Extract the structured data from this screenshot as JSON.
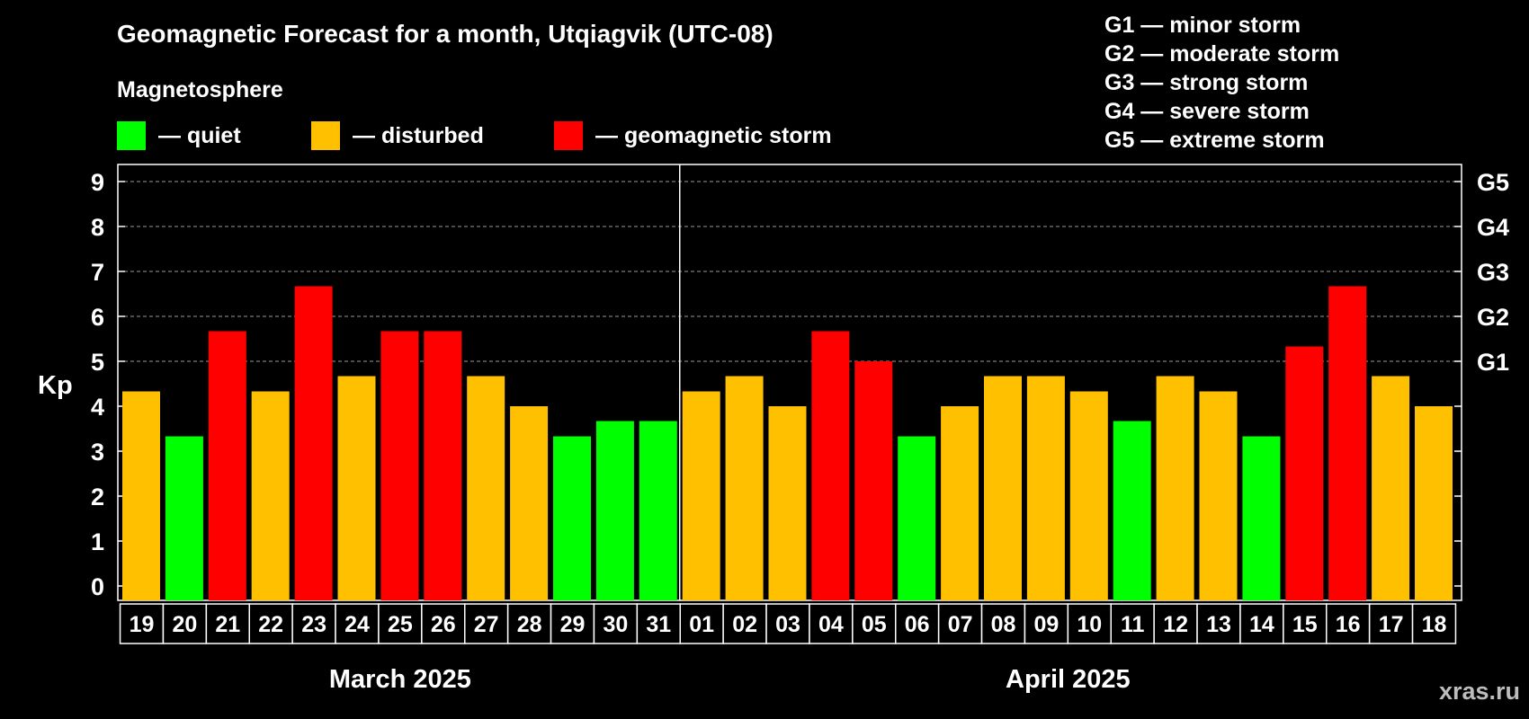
{
  "title": "Geomagnetic Forecast for a month, Utqiagvik (UTC-08)",
  "legend": {
    "title": "Magnetosphere",
    "items": [
      {
        "label": "— quiet",
        "color": "#00ff00"
      },
      {
        "label": "— disturbed",
        "color": "#ffc000"
      },
      {
        "label": "— geomagnetic storm",
        "color": "#ff0000"
      }
    ]
  },
  "g_scale": [
    "G1 — minor storm",
    "G2 — moderate storm",
    "G3 — strong storm",
    "G4 — severe storm",
    "G5 — extreme storm"
  ],
  "watermark": "xras.ru",
  "colors": {
    "quiet": "#00ff00",
    "disturbed": "#ffc000",
    "storm": "#ff0000"
  },
  "chart_data": {
    "type": "bar",
    "ylabel": "Kp",
    "ylim": [
      0,
      9
    ],
    "yticks": [
      "0",
      "1",
      "2",
      "3",
      "4",
      "5",
      "6",
      "7",
      "8",
      "9"
    ],
    "right_ticks": [
      {
        "label": "G1",
        "value": 5
      },
      {
        "label": "G2",
        "value": 6
      },
      {
        "label": "G3",
        "value": 7
      },
      {
        "label": "G4",
        "value": 8
      },
      {
        "label": "G5",
        "value": 9
      }
    ],
    "grid": "horizontal dashed from 5 to 9",
    "months": [
      {
        "label": "March 2025",
        "first_index": 0,
        "last_index": 12
      },
      {
        "label": "April 2025",
        "first_index": 13,
        "last_index": 30
      }
    ],
    "categories": [
      "19",
      "20",
      "21",
      "22",
      "23",
      "24",
      "25",
      "26",
      "27",
      "28",
      "29",
      "30",
      "31",
      "01",
      "02",
      "03",
      "04",
      "05",
      "06",
      "07",
      "08",
      "09",
      "10",
      "11",
      "12",
      "13",
      "14",
      "15",
      "16",
      "17",
      "18"
    ],
    "values": [
      4.33,
      3.33,
      5.67,
      4.33,
      6.67,
      4.67,
      5.67,
      5.67,
      4.67,
      4.0,
      3.33,
      3.67,
      3.67,
      4.33,
      4.67,
      4.0,
      5.67,
      5.0,
      3.33,
      4.0,
      4.67,
      4.67,
      4.33,
      3.67,
      4.67,
      4.33,
      3.33,
      5.33,
      6.67,
      4.67,
      4.0
    ],
    "levels": [
      "disturbed",
      "quiet",
      "storm",
      "disturbed",
      "storm",
      "disturbed",
      "storm",
      "storm",
      "disturbed",
      "disturbed",
      "quiet",
      "quiet",
      "quiet",
      "disturbed",
      "disturbed",
      "disturbed",
      "storm",
      "storm",
      "quiet",
      "disturbed",
      "disturbed",
      "disturbed",
      "disturbed",
      "quiet",
      "disturbed",
      "disturbed",
      "quiet",
      "storm",
      "storm",
      "disturbed",
      "disturbed"
    ]
  }
}
